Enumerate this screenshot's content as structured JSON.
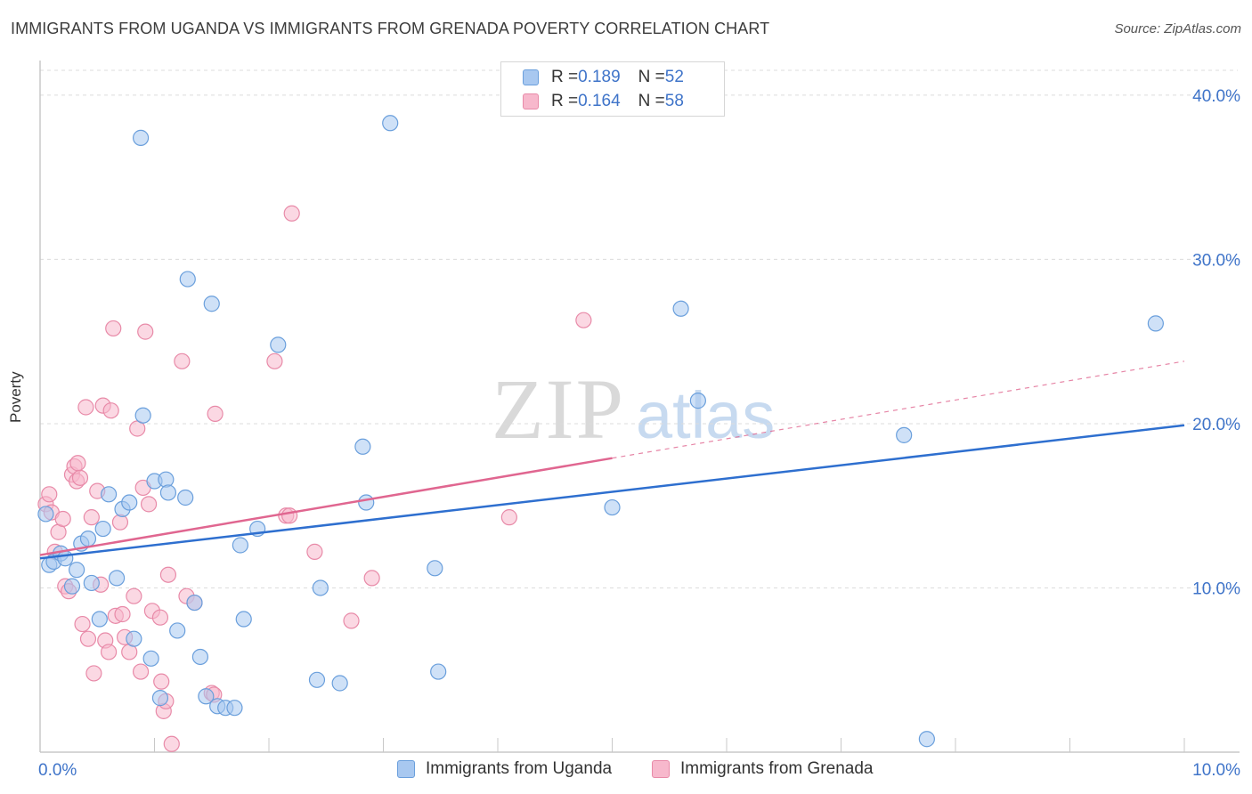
{
  "title": "IMMIGRANTS FROM UGANDA VS IMMIGRANTS FROM GRENADA POVERTY CORRELATION CHART",
  "source": "Source: ZipAtlas.com",
  "watermark": {
    "zip": "ZIP",
    "atlas": "atlas"
  },
  "legend": {
    "uganda": {
      "r_label": "R = ",
      "r_value": "0.189",
      "n_label": "N = ",
      "n_value": "52"
    },
    "grenada": {
      "r_label": "R = ",
      "r_value": "0.164",
      "n_label": "N = ",
      "n_value": "58"
    }
  },
  "bottom_legend": {
    "uganda": "Immigrants from Uganda",
    "grenada": "Immigrants from Grenada"
  },
  "colors": {
    "uganda_fill": "#a8c8f0",
    "uganda_stroke": "#6a9fdc",
    "uganda_line": "#2e6fcf",
    "grenada_fill": "#f7b8cc",
    "grenada_stroke": "#e88aa8",
    "grenada_line": "#e06690",
    "tick_label": "#3f74c9"
  },
  "chart_data": {
    "type": "scatter",
    "title": "IMMIGRANTS FROM UGANDA VS IMMIGRANTS FROM GRENADA POVERTY CORRELATION CHART",
    "xlabel": "",
    "ylabel": "Poverty",
    "xlim": [
      0,
      10
    ],
    "ylim": [
      0,
      42
    ],
    "x_tick_labels": [
      {
        "value": 0,
        "label": "0.0%"
      },
      {
        "value": 10,
        "label": "10.0%"
      }
    ],
    "y_tick_labels": [
      {
        "value": 10,
        "label": "10.0%"
      },
      {
        "value": 20,
        "label": "20.0%"
      },
      {
        "value": 30,
        "label": "30.0%"
      },
      {
        "value": 40,
        "label": "40.0%"
      }
    ],
    "series": [
      {
        "name": "Immigrants from Uganda",
        "r": 0.189,
        "n": 52,
        "trend": {
          "x0": 0,
          "y0": 11.8,
          "x1": 10,
          "y1": 19.9,
          "dash_from": null
        },
        "points": [
          [
            0.05,
            14.5
          ],
          [
            0.08,
            11.4
          ],
          [
            0.12,
            11.6
          ],
          [
            0.18,
            12.1
          ],
          [
            0.22,
            11.8
          ],
          [
            0.28,
            10.1
          ],
          [
            0.32,
            11.1
          ],
          [
            0.36,
            12.7
          ],
          [
            0.42,
            13.0
          ],
          [
            0.45,
            10.3
          ],
          [
            0.52,
            8.1
          ],
          [
            0.55,
            13.6
          ],
          [
            0.6,
            15.7
          ],
          [
            0.67,
            10.6
          ],
          [
            0.72,
            14.8
          ],
          [
            0.78,
            15.2
          ],
          [
            0.82,
            6.9
          ],
          [
            0.88,
            37.4
          ],
          [
            0.9,
            20.5
          ],
          [
            0.97,
            5.7
          ],
          [
            1.0,
            16.5
          ],
          [
            1.05,
            3.3
          ],
          [
            1.1,
            16.6
          ],
          [
            1.12,
            15.8
          ],
          [
            1.2,
            7.4
          ],
          [
            1.27,
            15.5
          ],
          [
            1.29,
            28.8
          ],
          [
            1.35,
            9.1
          ],
          [
            1.4,
            5.8
          ],
          [
            1.45,
            3.4
          ],
          [
            1.5,
            27.3
          ],
          [
            1.55,
            2.8
          ],
          [
            1.62,
            2.7
          ],
          [
            1.7,
            2.7
          ],
          [
            1.75,
            12.6
          ],
          [
            1.78,
            8.1
          ],
          [
            1.9,
            13.6
          ],
          [
            2.08,
            24.8
          ],
          [
            2.42,
            4.4
          ],
          [
            2.45,
            10.0
          ],
          [
            2.62,
            4.2
          ],
          [
            2.82,
            18.6
          ],
          [
            2.85,
            15.2
          ],
          [
            3.06,
            38.3
          ],
          [
            3.45,
            11.2
          ],
          [
            3.48,
            4.9
          ],
          [
            5.0,
            14.9
          ],
          [
            5.6,
            27.0
          ],
          [
            5.75,
            21.4
          ],
          [
            7.55,
            19.3
          ],
          [
            7.75,
            0.8
          ],
          [
            9.75,
            26.1
          ]
        ]
      },
      {
        "name": "Immigrants from Grenada",
        "r": 0.164,
        "n": 58,
        "trend": {
          "x0": 0,
          "y0": 12.0,
          "x1": 10,
          "y1": 23.8,
          "dash_from": 5.0
        },
        "points": [
          [
            0.05,
            15.1
          ],
          [
            0.08,
            15.7
          ],
          [
            0.1,
            14.6
          ],
          [
            0.13,
            12.2
          ],
          [
            0.16,
            13.4
          ],
          [
            0.2,
            14.2
          ],
          [
            0.22,
            10.1
          ],
          [
            0.25,
            9.8
          ],
          [
            0.28,
            16.9
          ],
          [
            0.3,
            17.4
          ],
          [
            0.32,
            16.5
          ],
          [
            0.33,
            17.6
          ],
          [
            0.35,
            16.7
          ],
          [
            0.37,
            7.8
          ],
          [
            0.4,
            21.0
          ],
          [
            0.42,
            6.9
          ],
          [
            0.45,
            14.3
          ],
          [
            0.47,
            4.8
          ],
          [
            0.5,
            15.9
          ],
          [
            0.53,
            10.2
          ],
          [
            0.55,
            21.1
          ],
          [
            0.57,
            6.8
          ],
          [
            0.6,
            6.1
          ],
          [
            0.62,
            20.8
          ],
          [
            0.64,
            25.8
          ],
          [
            0.66,
            8.3
          ],
          [
            0.7,
            14.0
          ],
          [
            0.72,
            8.4
          ],
          [
            0.74,
            7.0
          ],
          [
            0.78,
            6.1
          ],
          [
            0.82,
            9.5
          ],
          [
            0.85,
            19.7
          ],
          [
            0.88,
            4.9
          ],
          [
            0.9,
            16.1
          ],
          [
            0.92,
            25.6
          ],
          [
            0.95,
            15.1
          ],
          [
            0.98,
            8.6
          ],
          [
            1.05,
            8.2
          ],
          [
            1.06,
            4.3
          ],
          [
            1.08,
            2.5
          ],
          [
            1.1,
            3.1
          ],
          [
            1.12,
            10.8
          ],
          [
            1.15,
            0.5
          ],
          [
            1.24,
            23.8
          ],
          [
            1.28,
            9.5
          ],
          [
            1.35,
            9.1
          ],
          [
            1.5,
            3.6
          ],
          [
            1.52,
            3.5
          ],
          [
            1.53,
            20.6
          ],
          [
            2.05,
            23.8
          ],
          [
            2.15,
            14.4
          ],
          [
            2.18,
            14.4
          ],
          [
            2.2,
            32.8
          ],
          [
            2.4,
            12.2
          ],
          [
            2.72,
            8.0
          ],
          [
            2.9,
            10.6
          ],
          [
            4.1,
            14.3
          ],
          [
            4.75,
            26.3
          ]
        ]
      }
    ]
  }
}
